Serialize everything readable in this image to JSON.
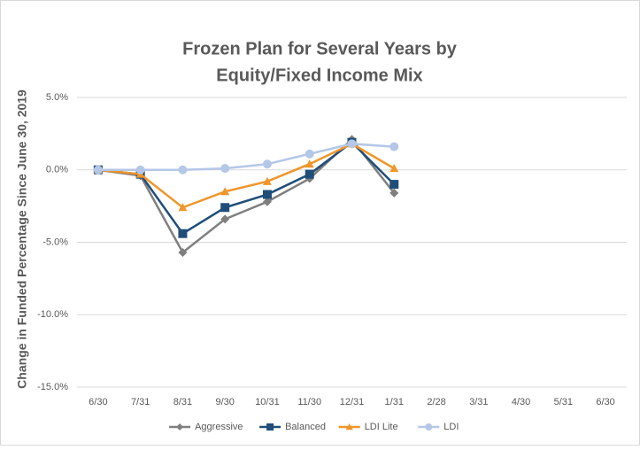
{
  "chart_data": {
    "type": "line",
    "title": [
      "Frozen Plan for Several Years by",
      "Equity/Fixed Income Mix"
    ],
    "y_label": "Change in Funded Percentage Since June 30, 2019",
    "categories": [
      "6/30",
      "7/31",
      "8/31",
      "9/30",
      "10/31",
      "11/30",
      "12/31",
      "1/31",
      "2/28",
      "3/31",
      "4/30",
      "5/31",
      "6/30"
    ],
    "series": [
      {
        "name": "Aggressive",
        "color": "#7f7f7f",
        "marker": "diamond",
        "values": [
          0,
          -0.4,
          -5.7,
          -3.4,
          -2.2,
          -0.6,
          2.1,
          -1.6,
          null,
          null,
          null,
          null,
          null
        ]
      },
      {
        "name": "Balanced",
        "color": "#1f4e79",
        "marker": "square",
        "values": [
          0,
          -0.3,
          -4.4,
          -2.6,
          -1.7,
          -0.3,
          1.9,
          -1.0,
          null,
          null,
          null,
          null,
          null
        ]
      },
      {
        "name": "LDI Lite",
        "color": "#f0962a",
        "marker": "triangle",
        "values": [
          0,
          -0.3,
          -2.6,
          -1.5,
          -0.8,
          0.4,
          1.8,
          0.1,
          null,
          null,
          null,
          null,
          null
        ]
      },
      {
        "name": "LDI",
        "color": "#b4c7e7",
        "marker": "circle",
        "values": [
          0,
          0,
          0,
          0.1,
          0.4,
          1.1,
          1.8,
          1.6,
          null,
          null,
          null,
          null,
          null
        ]
      }
    ],
    "ylim": [
      -15,
      5
    ],
    "yticks": [
      {
        "value": -15,
        "label": "-15.0%"
      },
      {
        "value": -10,
        "label": "-10.0%"
      },
      {
        "value": -5,
        "label": "-5.0%"
      },
      {
        "value": 0,
        "label": "0.0%"
      },
      {
        "value": 5,
        "label": "5.0%"
      }
    ],
    "grid": true,
    "legend": "bottom"
  }
}
